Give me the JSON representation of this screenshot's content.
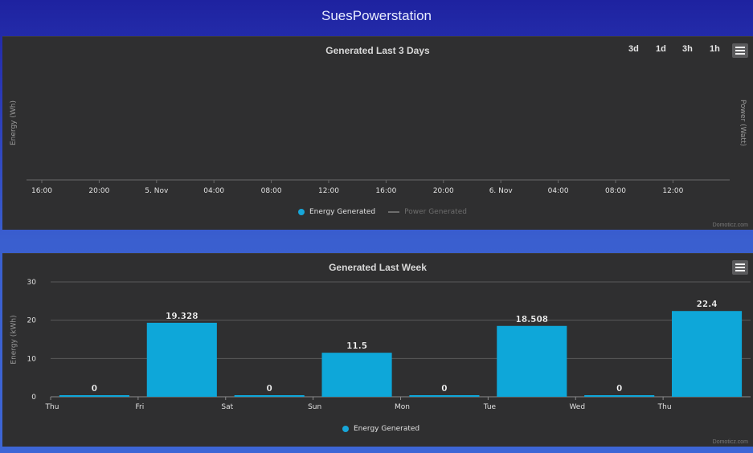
{
  "app": {
    "title": "SuesPowerstation"
  },
  "chart1": {
    "title": "Generated Last 3 Days",
    "range_buttons": [
      "3d",
      "1d",
      "3h",
      "1h"
    ],
    "y_left_label": "Energy (Wh)",
    "y_right_label": "Power (Watt)",
    "x_ticks": [
      "16:00",
      "20:00",
      "5. Nov",
      "04:00",
      "08:00",
      "12:00",
      "16:00",
      "20:00",
      "6. Nov",
      "04:00",
      "08:00",
      "12:00"
    ],
    "legend": {
      "energy": "Energy Generated",
      "power": "Power Generated"
    },
    "credit": "Domoticz.com"
  },
  "chart2": {
    "title": "Generated Last Week",
    "y_label": "Energy (kWh)",
    "y_ticks": [
      "0",
      "10",
      "20",
      "30"
    ],
    "x_ticks": [
      "Thu",
      "Fri",
      "Sat",
      "Sun",
      "Mon",
      "Tue",
      "Wed",
      "Thu"
    ],
    "legend": {
      "energy": "Energy Generated"
    },
    "credit": "Domoticz.com"
  },
  "chart_data": [
    {
      "type": "line",
      "title": "Generated Last 3 Days",
      "x_ticks": [
        "16:00",
        "20:00",
        "5. Nov",
        "04:00",
        "08:00",
        "12:00",
        "16:00",
        "20:00",
        "6. Nov",
        "04:00",
        "08:00",
        "12:00"
      ],
      "ylabel": "Energy (Wh)",
      "y2label": "Power (Watt)",
      "series": [
        {
          "name": "Energy Generated",
          "values": []
        },
        {
          "name": "Power Generated",
          "values": []
        }
      ],
      "colors": {
        "energy": "#17a6d8",
        "power": "#6d6d6d"
      },
      "legend": "bottom-center"
    },
    {
      "type": "bar",
      "title": "Generated Last Week",
      "categories": [
        "Thu",
        "Fri",
        "Sat",
        "Sun",
        "Mon",
        "Tue",
        "Wed",
        "Thu"
      ],
      "ylabel": "Energy (kWh)",
      "ylim": [
        0,
        30
      ],
      "y_ticks": [
        0,
        10,
        20,
        30
      ],
      "series": [
        {
          "name": "Energy Generated",
          "values": [
            0,
            19.328,
            0,
            11.5,
            0,
            18.508,
            0,
            22.4
          ]
        }
      ],
      "data_labels": [
        "0",
        "19.328",
        "0",
        "11.5",
        "0",
        "18.508",
        "0",
        "22.4"
      ],
      "grid": true,
      "legend": "bottom-center",
      "colors": {
        "bar": "#0ea7d9"
      }
    }
  ]
}
